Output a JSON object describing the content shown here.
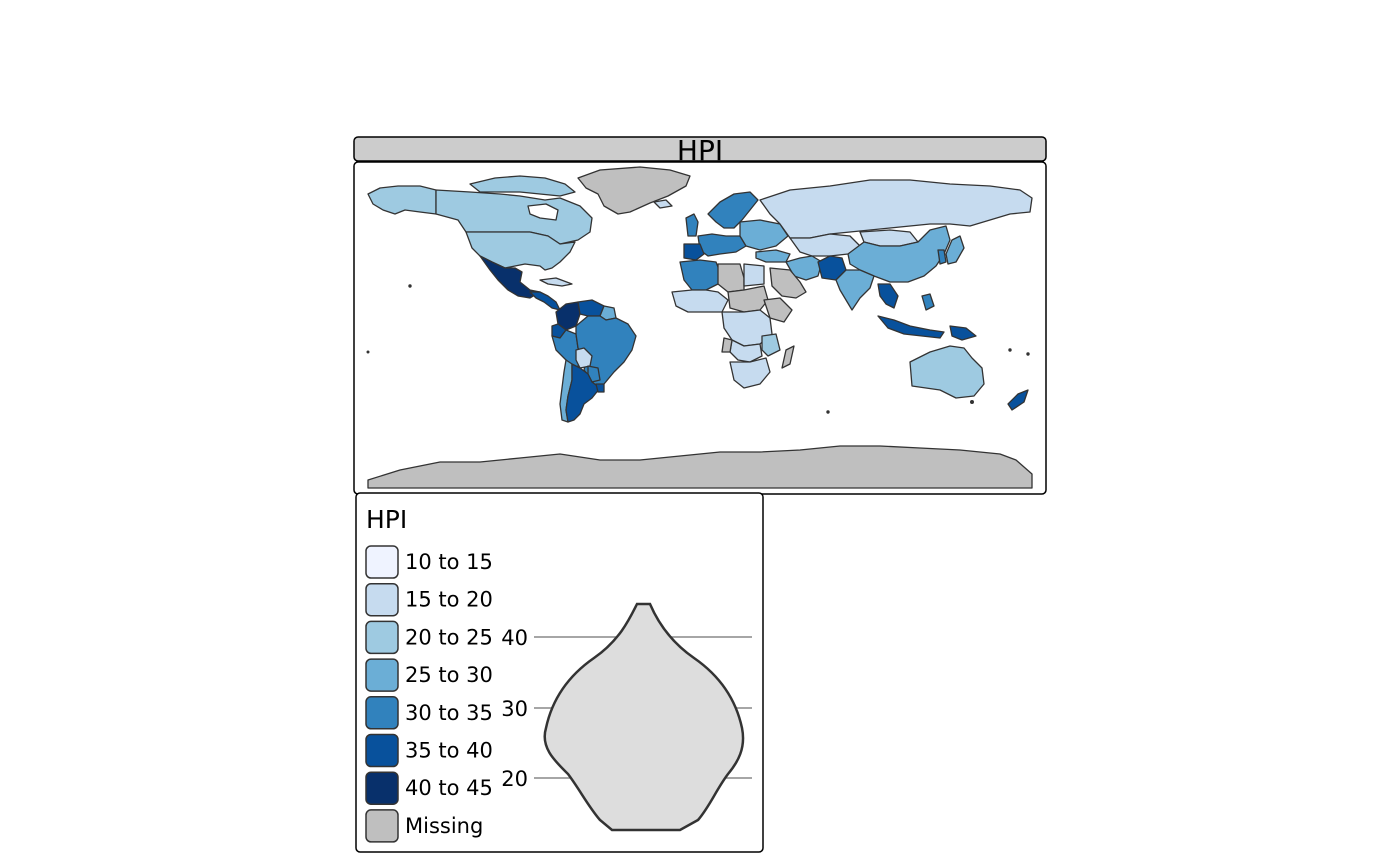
{
  "panel_title": "HPI",
  "legend": {
    "title": "HPI",
    "items": [
      {
        "label": "10 to 15",
        "color": "#EFF3FF"
      },
      {
        "label": "15 to 20",
        "color": "#C6DBEF"
      },
      {
        "label": "20 to 25",
        "color": "#9ECAE1"
      },
      {
        "label": "25 to 30",
        "color": "#6BAED6"
      },
      {
        "label": "30 to 35",
        "color": "#3182BD"
      },
      {
        "label": "35 to 40",
        "color": "#08519C"
      },
      {
        "label": "40 to 45",
        "color": "#08306B"
      },
      {
        "label": "Missing",
        "color": "#BFBFBF"
      }
    ]
  },
  "violin": {
    "axis_ticks": [
      {
        "label": "40",
        "value": 40
      },
      {
        "label": "30",
        "value": 30
      },
      {
        "label": "20",
        "value": 20
      }
    ]
  },
  "colors": {
    "strip_fill": "#CCCCCC",
    "border": "#333333",
    "ocean": "#FFFFFF",
    "violin_fill": "#DDDDDD"
  }
}
